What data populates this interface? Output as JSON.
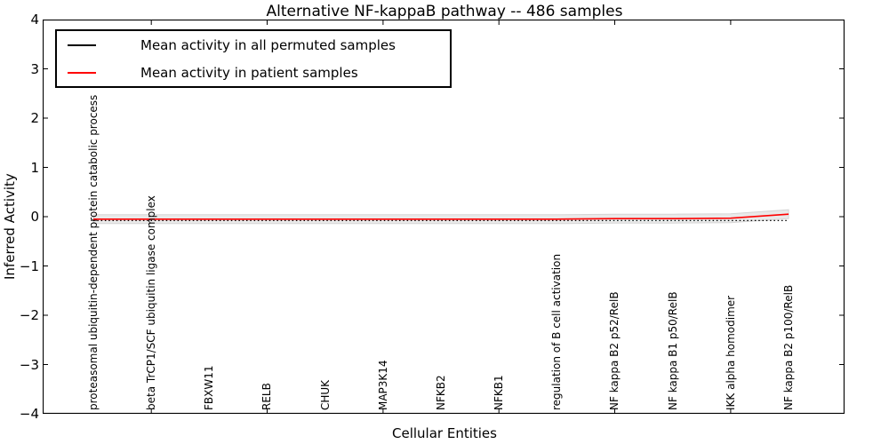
{
  "title": "Alternative NF-kappaB pathway -- 486 samples",
  "axes": {
    "ylabel": "Inferred Activity",
    "xlabel": "Cellular Entities",
    "y_ticks": [
      "4",
      "3",
      "2",
      "1",
      "0",
      "−1",
      "−2",
      "−3",
      "−4"
    ]
  },
  "legend": {
    "entries": [
      {
        "label": "Mean activity in all permuted samples",
        "color": "#000000"
      },
      {
        "label": "Mean activity in patient samples",
        "color": "#ff0000"
      }
    ]
  },
  "chart_data": {
    "type": "line",
    "title": "Alternative NF-kappaB pathway -- 486 samples",
    "xlabel": "Cellular Entities",
    "ylabel": "Inferred Activity",
    "ylim": [
      -4,
      4
    ],
    "grid": false,
    "legend_position": "upper left",
    "categories": [
      "proteasomal ubiquitin-dependent protein catabolic process",
      "beta TrCP1/SCF ubiquitin ligase complex",
      "FBXW11",
      "RELB",
      "CHUK",
      "MAP3K14",
      "NFKB2",
      "NFKB1",
      "regulation of B cell activation",
      "NF kappa B2 p52/RelB",
      "NF kappa B1 p50/RelB",
      "IKK alpha homodimer",
      "NF kappa B2 p100/RelB"
    ],
    "series": [
      {
        "name": "Mean activity in all permuted samples",
        "color": "#000000",
        "line_style": "dotted",
        "values": [
          -0.08,
          -0.08,
          -0.08,
          -0.08,
          -0.08,
          -0.08,
          -0.08,
          -0.08,
          -0.08,
          -0.08,
          -0.08,
          -0.08,
          -0.08
        ]
      },
      {
        "name": "Mean activity in patient samples",
        "color": "#ff0000",
        "line_style": "solid",
        "values": [
          -0.05,
          -0.05,
          -0.05,
          -0.05,
          -0.05,
          -0.05,
          -0.05,
          -0.05,
          -0.05,
          -0.04,
          -0.04,
          -0.03,
          0.05
        ]
      }
    ],
    "band": {
      "color": "#e9e9e9",
      "edge_color": "#d5d5d5",
      "halfwidth": 0.09,
      "around": "patient mean"
    }
  }
}
